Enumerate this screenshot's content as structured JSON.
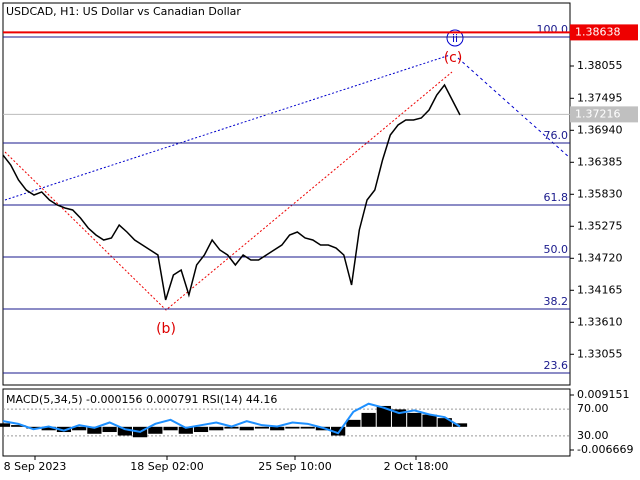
{
  "chart_data": {
    "type": "line",
    "title": "USDCAD, H1:  US Dollar vs Canadian Dollar",
    "color": "#000000",
    "values": [
      1.36511,
      1.36338,
      1.36078,
      1.35904,
      1.35818,
      1.3587,
      1.35731,
      1.35644,
      1.35592,
      1.35558,
      1.35419,
      1.35245,
      1.35124,
      1.35037,
      1.35072,
      1.35297,
      1.35176,
      1.35037,
      1.3495,
      1.34864,
      1.34777,
      1.33997,
      1.3443,
      1.34517,
      1.34083,
      1.34604,
      1.34777,
      1.35037,
      1.34864,
      1.34777,
      1.34604,
      1.34777,
      1.3469,
      1.3469,
      1.34777,
      1.34864,
      1.3495,
      1.35124,
      1.35176,
      1.35072,
      1.35037,
      1.3495,
      1.3495,
      1.34898,
      1.34777,
      1.34257,
      1.35211,
      1.35731,
      1.35904,
      1.36425,
      1.36858,
      1.37032,
      1.37118,
      1.37118,
      1.37153,
      1.37292,
      1.37552,
      1.37725,
      1.37465,
      1.37205
    ],
    "ylim": [
      1.32522,
      1.392
    ],
    "yticks": [
      1.33055,
      {
        "value": 1.3361,
        "label": "1.33610"
      },
      1.34165,
      {
        "value": 1.3472,
        "label": "1.34720"
      },
      1.35275,
      {
        "value": 1.3583,
        "label": "1.35830"
      },
      1.36385,
      {
        "value": 1.3694,
        "label": "1.36940"
      },
      1.37495,
      1.38055
    ],
    "xlabels": [
      "8 Sep 2023",
      "18 Sep 02:00",
      "25 Sep 10:00",
      "2 Oct 18:00"
    ],
    "bid_price": 1.38638,
    "last_price": 1.37216,
    "fib_levels": [
      {
        "level": "100.0",
        "price": 1.38558
      },
      {
        "level": "76.0",
        "price": 1.36719
      },
      {
        "level": "61.8",
        "price": 1.35644
      },
      {
        "level": "50.0",
        "price": 1.34742
      },
      {
        "level": "38.2",
        "price": 1.3384
      },
      {
        "level": "23.6",
        "price": 1.3273
      }
    ],
    "annotations": [
      "(b)",
      "(c)",
      "ii"
    ],
    "indicator": {
      "title": "MACD(5,34,5) -0.000156 0.000791 RSI(14) 44.16",
      "ylim": [
        -0.006669,
        0.009151
      ],
      "yticks": [
        0.009151,
        -0.006669
      ],
      "histogram": [
        0.001,
        0.0005,
        -0.0005,
        -0.001,
        -0.0015,
        -0.001,
        -0.002,
        -0.0015,
        -0.0025,
        -0.003,
        -0.002,
        -0.001,
        -0.002,
        -0.0015,
        -0.001,
        -0.0005,
        -0.001,
        -0.0005,
        -0.001,
        -0.0005,
        -0.0005,
        -0.001,
        -0.0025,
        0.002,
        0.004,
        0.006,
        0.005,
        0.004,
        0.0035,
        0.0025,
        0.001
      ],
      "rsi_ylim": [
        0,
        100
      ],
      "rsi_ticks": [
        {
          "value": 70,
          "label": "70.00"
        },
        {
          "value": 30,
          "label": "30.00"
        }
      ],
      "rsi": [
        52,
        48,
        40,
        44,
        38,
        46,
        42,
        50,
        40,
        36,
        48,
        54,
        42,
        46,
        50,
        44,
        52,
        46,
        44,
        50,
        48,
        42,
        34,
        66,
        78,
        72,
        64,
        68,
        62,
        58,
        44
      ]
    }
  }
}
